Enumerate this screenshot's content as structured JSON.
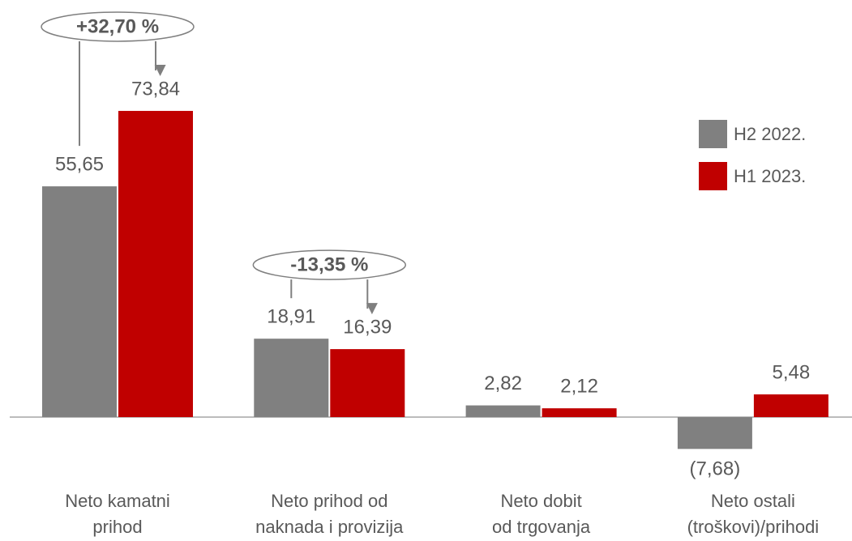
{
  "chart_data": {
    "type": "bar",
    "categories": [
      "Neto kamatni\nprihod",
      "Neto prihod od\nnaknada i provizija",
      "Neto dobit\nod trgovanja",
      "Neto ostali\n(troškovi)/prihodi"
    ],
    "series": [
      {
        "name": "H2 2022.",
        "color": "#808080",
        "values": [
          55.65,
          18.91,
          2.82,
          -7.68
        ],
        "value_labels": [
          "55,65",
          "18,91",
          "2,82",
          "(7,68)"
        ]
      },
      {
        "name": "H1 2023.",
        "color": "#c00000",
        "values": [
          73.84,
          16.39,
          2.12,
          5.48
        ],
        "value_labels": [
          "73,84",
          "16,39",
          "2,12",
          "5,48"
        ]
      }
    ],
    "annotations": [
      "+32,70 %",
      "-13,35 %"
    ],
    "ylim": [
      -10,
      80
    ],
    "legend": "right"
  }
}
